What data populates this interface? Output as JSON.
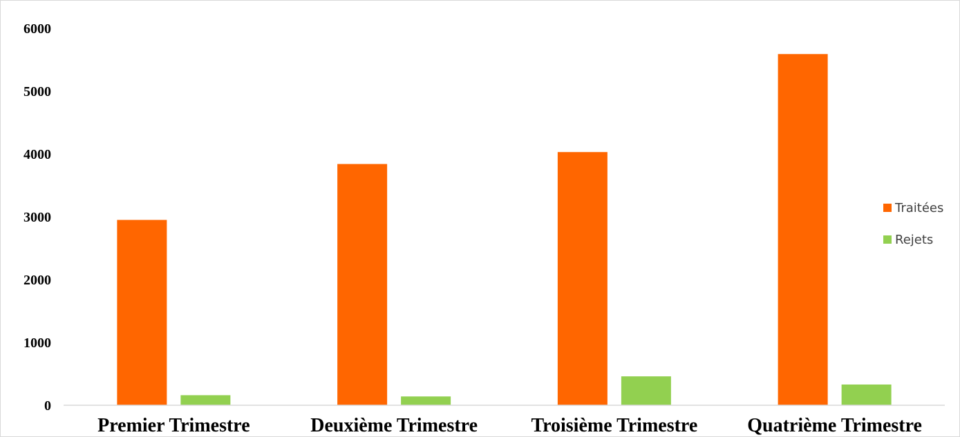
{
  "chart_data": {
    "type": "bar",
    "title": "",
    "xlabel": "",
    "ylabel": "",
    "categories": [
      "Premier Trimestre",
      "Deuxième Trimestre",
      "Troisième Trimestre",
      "Quatrième Trimestre"
    ],
    "series": [
      {
        "name": "Traitées",
        "color": "#ff6600",
        "values": [
          2950,
          3840,
          4030,
          5590
        ]
      },
      {
        "name": "Rejets",
        "color": "#92d050",
        "values": [
          160,
          140,
          460,
          330
        ]
      }
    ],
    "ylim": [
      0,
      6000
    ],
    "yticks": [
      "0",
      "1000",
      "2000",
      "3000",
      "4000",
      "5000",
      "6000"
    ],
    "grid": false,
    "legend_position": "right"
  }
}
